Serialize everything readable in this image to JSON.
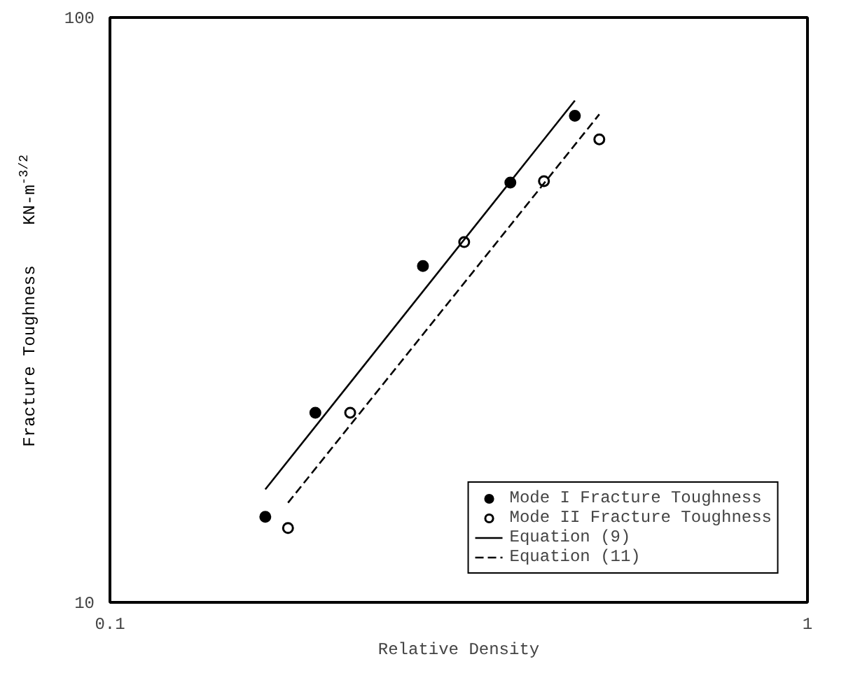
{
  "chart_data": {
    "type": "scatter",
    "xlabel": "Relative Density",
    "ylabel": "Fracture Toughness    KN-m$^{-3/2}$",
    "log": "xy",
    "xlim": [
      0.1,
      1
    ],
    "ylim": [
      10,
      100
    ],
    "xticks": [
      0.1,
      1
    ],
    "yticks": [
      10,
      100
    ],
    "legend": "bottom right",
    "series": [
      {
        "name": "Mode I Fracture Toughness",
        "marker": "circle",
        "color": "#000000",
        "x": [
          0.167,
          0.197,
          0.281,
          0.375,
          0.464
        ],
        "values": [
          14.0,
          21.1,
          37.6,
          52.2,
          67.9
        ]
      },
      {
        "name": "Mode II Fracture Toughness",
        "marker": "circle",
        "color": "#ffffff",
        "x": [
          0.18,
          0.221,
          0.322,
          0.419,
          0.503
        ],
        "values": [
          13.4,
          21.1,
          41.3,
          52.5,
          61.9
        ]
      },
      {
        "name": "Equation (9)",
        "type": "line",
        "line_style": "solid",
        "color": "#000000",
        "x": [
          0.167,
          0.464
        ],
        "values": [
          15.6,
          72.1
        ]
      },
      {
        "name": "Equation (11)",
        "type": "line",
        "line_style": "dashed",
        "color": "#000000",
        "x": [
          0.18,
          0.503
        ],
        "values": [
          14.8,
          68.3
        ]
      }
    ]
  }
}
